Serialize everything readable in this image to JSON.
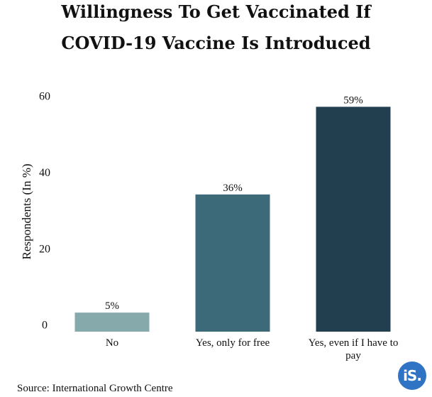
{
  "chart_data": {
    "type": "bar",
    "title_lines": [
      "Willingness To Get Vaccinated If",
      "COVID-19 Vaccine Is Introduced"
    ],
    "ylabel": "Respondents (In %)",
    "xlabel": "",
    "categories": [
      "No",
      "Yes, only for free",
      "Yes, even if I have to pay"
    ],
    "values": [
      5,
      36,
      59
    ],
    "data_labels": [
      "5%",
      "36%",
      "59%"
    ],
    "bar_colors": [
      "#86a9ab",
      "#3c6a78",
      "#213f4f"
    ],
    "ylim": [
      0,
      60
    ],
    "yticks": [
      0,
      20,
      40,
      60
    ],
    "grid": false,
    "legend": "none"
  },
  "source": "Source: International Growth Centre",
  "logo": {
    "text": "iS.",
    "color": "#2f73c4"
  }
}
